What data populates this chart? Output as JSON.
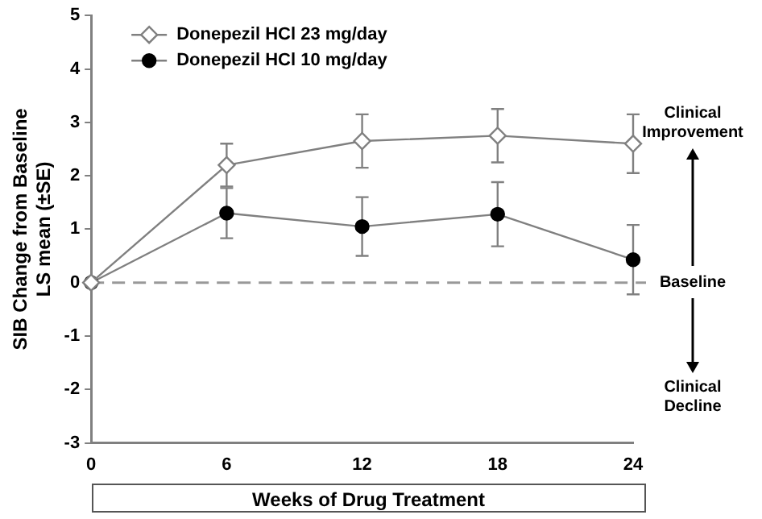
{
  "chart_data": {
    "type": "line",
    "ylabel": "SIB Change from Baseline\nLS mean (±SE)",
    "xlabel": "Weeks of Drug Treatment",
    "x": [
      0,
      6,
      12,
      18,
      24
    ],
    "xlim": [
      0,
      24
    ],
    "xticks": [
      0,
      6,
      12,
      18,
      24
    ],
    "ylim": [
      -3,
      5
    ],
    "yticks": [
      -3,
      -2,
      -1,
      0,
      1,
      2,
      3,
      4,
      5
    ],
    "series": [
      {
        "name": "Donepezil HCl 23 mg/day",
        "color": "#808080",
        "marker": "diamond",
        "values": [
          0,
          2.2,
          2.65,
          2.75,
          2.6
        ],
        "errors": [
          null,
          0.4,
          0.5,
          0.5,
          0.55
        ]
      },
      {
        "name": "Donepezil HCl 10 mg/day",
        "color": "#000000",
        "marker": "circle",
        "values": [
          0,
          1.3,
          1.05,
          1.28,
          0.43
        ],
        "errors": [
          null,
          0.47,
          0.55,
          0.6,
          0.65
        ]
      }
    ],
    "ref_lines": [
      {
        "axis": "y",
        "value": 0,
        "label": "Baseline",
        "color": "#999999",
        "line_style": "dashed"
      }
    ],
    "annotations": [
      "Clinical\nImprovement",
      "Clinical\nDecline"
    ],
    "legend": "top left",
    "grid": false
  }
}
